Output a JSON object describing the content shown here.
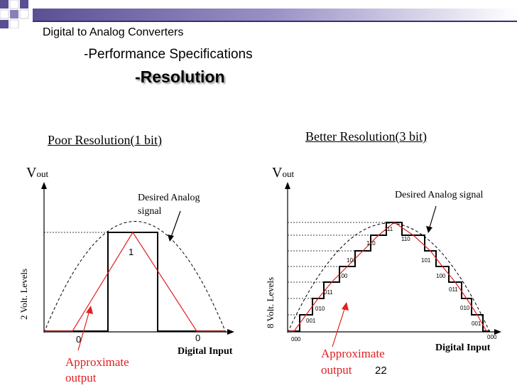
{
  "header": {
    "title": "Digital to Analog Converters",
    "subtitle": "-Performance Specifications",
    "topic": "-Resolution"
  },
  "left_panel": {
    "heading": "Poor Resolution(1 bit)",
    "vout_v": "V",
    "vout_sub": "out",
    "y_label": "2 Volt. Levels",
    "desired_label_line1": "Desired Analog",
    "desired_label_line2": "signal",
    "level_high": "1",
    "code_left": "0",
    "code_right": "0",
    "x_label": "Digital Input",
    "approx_line1": "Approximate",
    "approx_line2": "output"
  },
  "right_panel": {
    "heading": "Better Resolution(3 bit)",
    "vout_v": "V",
    "vout_sub": "out",
    "y_label": "8 Volt. Levels",
    "desired_label": "Desired Analog signal",
    "codes": [
      "000",
      "001",
      "010",
      "011",
      "100",
      "101",
      "110",
      "111",
      "110",
      "101",
      "100",
      "011",
      "010",
      "001",
      "000"
    ],
    "x_label": "Digital Input",
    "approx_line1": "Approximate",
    "approx_line2": "output"
  },
  "page_number": "22",
  "colors": {
    "accent_purple": "#6a5d9e",
    "approx_red": "#e02020"
  }
}
